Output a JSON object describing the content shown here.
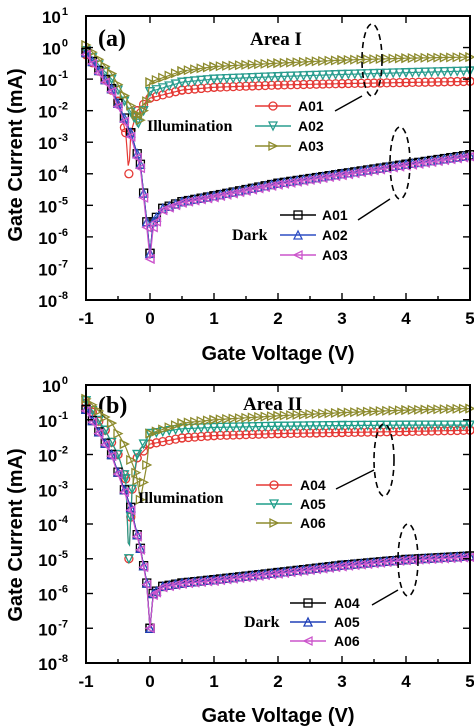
{
  "colors": {
    "A01_illum": "#e53935",
    "A02_illum": "#2a9d8f",
    "A03_illum": "#8d8b2e",
    "A01_dark": "#000000",
    "A02_dark": "#2f4fc4",
    "A03_dark": "#cc55cc",
    "A04_illum": "#e53935",
    "A05_illum": "#1f9e8a",
    "A06_illum": "#8d8b2e",
    "A04_dark": "#000000",
    "A05_dark": "#2040b8",
    "A06_dark": "#cc55cc"
  },
  "chart_data": [
    {
      "type": "line",
      "panel_label": "(a)",
      "title": "Area I",
      "xlabel": "Gate Voltage (V)",
      "ylabel": "Gate Current (mA)",
      "yscale": "log",
      "xlim": [
        -1,
        5
      ],
      "ylim_exp": [
        -8,
        1
      ],
      "xticks": [
        "-1",
        "0",
        "1",
        "2",
        "3",
        "4",
        "5"
      ],
      "yticks": [
        "10",
        "10",
        "10",
        "10",
        "10",
        "10",
        "10",
        "10",
        "10",
        "10"
      ],
      "yticks_exp": [
        "1",
        "0",
        "-1",
        "-2",
        "-3",
        "-4",
        "-5",
        "-6",
        "-7",
        "-8"
      ],
      "groups": [
        {
          "label": "Illumination",
          "series": [
            "A01",
            "A02",
            "A03"
          ]
        },
        {
          "label": "Dark",
          "series": [
            "A01",
            "A02",
            "A03"
          ]
        }
      ],
      "series": [
        {
          "name": "A01",
          "group": "Illumination",
          "marker": "circle",
          "color_key": "A01_illum",
          "x": [
            -1,
            -0.7,
            -0.5,
            -0.38,
            -0.33,
            -0.3,
            -0.2,
            0,
            0.5,
            1,
            2,
            3,
            4,
            5
          ],
          "y": [
            0.6,
            0.1,
            0.02,
            0.002,
            0.0001,
            0.002,
            0.01,
            0.025,
            0.045,
            0.055,
            0.065,
            0.072,
            0.078,
            0.085
          ]
        },
        {
          "name": "A02",
          "group": "Illumination",
          "marker": "triangle-down",
          "color_key": "A02_illum",
          "x": [
            -1,
            -0.6,
            -0.4,
            -0.25,
            -0.18,
            -0.1,
            0,
            0.5,
            1,
            2,
            3,
            4,
            5
          ],
          "y": [
            0.8,
            0.1,
            0.02,
            0.006,
            0.004,
            0.01,
            0.04,
            0.08,
            0.1,
            0.12,
            0.14,
            0.16,
            0.18
          ]
        },
        {
          "name": "A03",
          "group": "Illumination",
          "marker": "triangle-right",
          "color_key": "A03_illum",
          "x": [
            -1,
            -0.6,
            -0.4,
            -0.22,
            -0.15,
            -0.05,
            0,
            0.5,
            1,
            2,
            3,
            4,
            5
          ],
          "y": [
            1.2,
            0.15,
            0.03,
            0.008,
            0.005,
            0.02,
            0.08,
            0.18,
            0.25,
            0.32,
            0.4,
            0.46,
            0.5
          ]
        },
        {
          "name": "A01",
          "group": "Dark",
          "marker": "square",
          "color_key": "A01_dark",
          "x": [
            -1,
            -0.6,
            -0.3,
            -0.15,
            -0.05,
            0,
            0.05,
            0.2,
            0.5,
            1,
            2,
            3,
            4,
            5
          ],
          "y": [
            0.7,
            0.05,
            0.002,
            0.0002,
            3e-06,
            3e-07,
            3e-06,
            8e-06,
            1.3e-05,
            2e-05,
            5e-05,
            0.0001,
            0.0002,
            0.0004
          ]
        },
        {
          "name": "A02",
          "group": "Dark",
          "marker": "triangle-up",
          "color_key": "A02_dark",
          "x": [
            -1,
            -0.6,
            -0.3,
            -0.15,
            -0.05,
            0,
            0.05,
            0.2,
            0.5,
            1,
            2,
            3,
            4,
            5
          ],
          "y": [
            0.7,
            0.05,
            0.002,
            0.0002,
            3e-06,
            3e-07,
            3e-06,
            8e-06,
            1.3e-05,
            2e-05,
            5e-05,
            0.0001,
            0.0002,
            0.00038
          ]
        },
        {
          "name": "A03",
          "group": "Dark",
          "marker": "triangle-left",
          "color_key": "A03_dark",
          "x": [
            -1,
            -0.6,
            -0.3,
            -0.15,
            -0.05,
            0,
            0.05,
            0.2,
            0.5,
            1,
            2,
            3,
            4,
            5
          ],
          "y": [
            0.6,
            0.04,
            0.0015,
            0.00015,
            2e-06,
            2e-07,
            2e-06,
            7e-06,
            1.2e-05,
            1.8e-05,
            4.5e-05,
            9e-05,
            0.00018,
            0.00035
          ]
        }
      ]
    },
    {
      "type": "line",
      "panel_label": "(b)",
      "title": "Area II",
      "xlabel": "Gate Voltage (V)",
      "ylabel": "Gate Current (mA)",
      "yscale": "log",
      "xlim": [
        -1,
        5
      ],
      "ylim_exp": [
        -8,
        0
      ],
      "xticks": [
        "-1",
        "0",
        "1",
        "2",
        "3",
        "4",
        "5"
      ],
      "yticks": [
        "10",
        "10",
        "10",
        "10",
        "10",
        "10",
        "10",
        "10",
        "10"
      ],
      "yticks_exp": [
        "0",
        "-1",
        "-2",
        "-3",
        "-4",
        "-5",
        "-6",
        "-7",
        "-8"
      ],
      "groups": [
        {
          "label": "Illumination",
          "series": [
            "A04",
            "A05",
            "A06"
          ]
        },
        {
          "label": "Dark",
          "series": [
            "A04",
            "A05",
            "A06"
          ]
        }
      ],
      "series": [
        {
          "name": "A04",
          "group": "Illumination",
          "marker": "circle",
          "color_key": "A04_illum",
          "x": [
            -1,
            -0.7,
            -0.5,
            -0.38,
            -0.33,
            -0.28,
            -0.2,
            0,
            0.5,
            1,
            2,
            3,
            4,
            5
          ],
          "y": [
            0.3,
            0.05,
            0.01,
            0.002,
            1e-05,
            0.001,
            0.008,
            0.02,
            0.03,
            0.035,
            0.04,
            0.043,
            0.046,
            0.05
          ]
        },
        {
          "name": "A05",
          "group": "Illumination",
          "marker": "triangle-down",
          "color_key": "A05_illum",
          "x": [
            -1,
            -0.7,
            -0.5,
            -0.38,
            -0.33,
            -0.28,
            -0.2,
            0,
            0.5,
            1,
            2,
            3,
            4,
            5
          ],
          "y": [
            0.35,
            0.05,
            0.01,
            0.002,
            1e-05,
            0.001,
            0.01,
            0.04,
            0.055,
            0.06,
            0.065,
            0.068,
            0.07,
            0.07
          ]
        },
        {
          "name": "A06",
          "group": "Illumination",
          "marker": "triangle-right",
          "color_key": "A06_illum",
          "x": [
            -1,
            -0.6,
            -0.4,
            -0.22,
            -0.15,
            -0.05,
            0,
            0.5,
            1,
            2,
            3,
            4,
            5
          ],
          "y": [
            0.4,
            0.08,
            0.02,
            0.003,
            0.0005,
            0.005,
            0.04,
            0.08,
            0.1,
            0.13,
            0.16,
            0.19,
            0.21
          ]
        },
        {
          "name": "A04",
          "group": "Dark",
          "marker": "square",
          "color_key": "A04_dark",
          "x": [
            -1,
            -0.6,
            -0.3,
            -0.15,
            -0.05,
            0,
            0.05,
            0.2,
            0.5,
            1,
            2,
            3,
            4,
            5
          ],
          "y": [
            0.2,
            0.01,
            0.0003,
            2e-05,
            2e-06,
            1e-07,
            1e-06,
            1.6e-06,
            2e-06,
            2.5e-06,
            4e-06,
            6.5e-06,
            9.5e-06,
            1.2e-05
          ]
        },
        {
          "name": "A05",
          "group": "Dark",
          "marker": "triangle-up",
          "color_key": "A05_dark",
          "x": [
            -1,
            -0.6,
            -0.3,
            -0.15,
            -0.05,
            0,
            0.05,
            0.2,
            0.5,
            1,
            2,
            3,
            4,
            5
          ],
          "y": [
            0.2,
            0.01,
            0.0003,
            2e-05,
            2e-06,
            1e-07,
            1e-06,
            1.6e-06,
            2e-06,
            2.5e-06,
            4e-06,
            6.5e-06,
            9.5e-06,
            1.2e-05
          ]
        },
        {
          "name": "A06",
          "group": "Dark",
          "marker": "triangle-left",
          "color_key": "A06_dark",
          "x": [
            -1,
            -0.6,
            -0.3,
            -0.15,
            -0.05,
            0,
            0.05,
            0.2,
            0.5,
            1,
            2,
            3,
            4,
            5
          ],
          "y": [
            0.18,
            0.009,
            0.00025,
            1.8e-05,
            1.8e-06,
            1e-07,
            9e-07,
            1.5e-06,
            1.9e-06,
            2.3e-06,
            3.7e-06,
            6e-06,
            9e-06,
            1.1e-05
          ]
        }
      ]
    }
  ]
}
